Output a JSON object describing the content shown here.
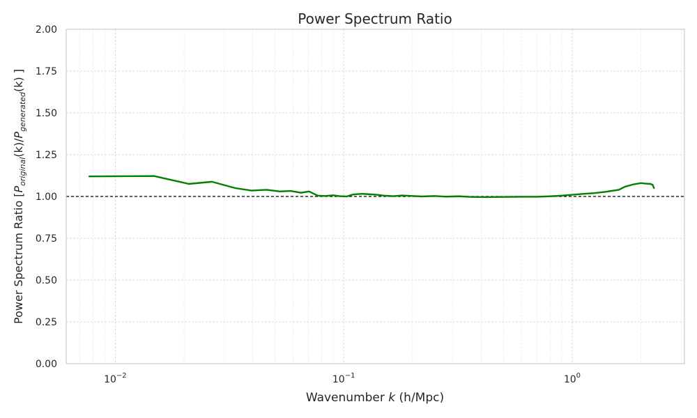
{
  "chart_data": {
    "type": "line",
    "title": "Power Spectrum Ratio",
    "xlabel": {
      "pre": "Wavenumber ",
      "var": "k",
      "post": " (h/Mpc)"
    },
    "ylabel": {
      "pre": "Power Spectrum Ratio [",
      "p1": "P",
      "sub1": "original",
      "mid": "(k)/",
      "p2": "P",
      "sub2": "generated",
      "post": "(k) ]"
    },
    "x_scale": "log",
    "xlim": [
      0.0061,
      3.1
    ],
    "ylim": [
      0,
      2
    ],
    "yticks": [
      "0.00",
      "0.25",
      "0.50",
      "0.75",
      "1.00",
      "1.25",
      "1.50",
      "1.75",
      "2.00"
    ],
    "xticks": [
      {
        "base": "10",
        "exp": "−2"
      },
      {
        "base": "10",
        "exp": "−1"
      },
      {
        "base": "10",
        "exp": "0"
      }
    ],
    "grid": true,
    "reference_line": {
      "y": 1.0,
      "style": "dashed",
      "color": "#000000"
    },
    "series": [
      {
        "color": "#008000",
        "points": [
          [
            0.0077,
            1.12
          ],
          [
            0.0148,
            1.122
          ],
          [
            0.021,
            1.075
          ],
          [
            0.0265,
            1.088
          ],
          [
            0.0335,
            1.05
          ],
          [
            0.0395,
            1.035
          ],
          [
            0.046,
            1.04
          ],
          [
            0.0525,
            1.03
          ],
          [
            0.0585,
            1.033
          ],
          [
            0.065,
            1.022
          ],
          [
            0.0705,
            1.03
          ],
          [
            0.077,
            1.005
          ],
          [
            0.083,
            1.003
          ],
          [
            0.09,
            1.007
          ],
          [
            0.096,
            1.002
          ],
          [
            0.103,
            1.0
          ],
          [
            0.11,
            1.012
          ],
          [
            0.12,
            1.016
          ],
          [
            0.13,
            1.013
          ],
          [
            0.14,
            1.01
          ],
          [
            0.15,
            1.005
          ],
          [
            0.165,
            1.002
          ],
          [
            0.18,
            1.006
          ],
          [
            0.2,
            1.003
          ],
          [
            0.22,
            1.0
          ],
          [
            0.25,
            1.003
          ],
          [
            0.28,
            0.999
          ],
          [
            0.32,
            1.001
          ],
          [
            0.36,
            0.997
          ],
          [
            0.42,
            0.996
          ],
          [
            0.5,
            0.997
          ],
          [
            0.6,
            0.998
          ],
          [
            0.7,
            0.998
          ],
          [
            0.8,
            1.001
          ],
          [
            0.9,
            1.005
          ],
          [
            1.0,
            1.01
          ],
          [
            1.1,
            1.015
          ],
          [
            1.25,
            1.02
          ],
          [
            1.4,
            1.028
          ],
          [
            1.6,
            1.04
          ],
          [
            1.7,
            1.058
          ],
          [
            1.85,
            1.072
          ],
          [
            2.0,
            1.08
          ],
          [
            2.1,
            1.077
          ],
          [
            2.2,
            1.075
          ],
          [
            2.25,
            1.07
          ],
          [
            2.28,
            1.05
          ]
        ]
      }
    ]
  }
}
